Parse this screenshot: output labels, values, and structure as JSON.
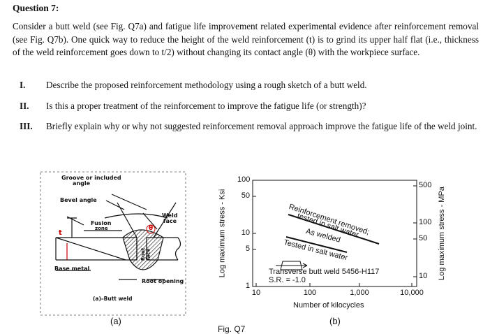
{
  "question": {
    "title": "Question 7:",
    "paragraph": "Consider a butt weld (see Fig. Q7a) and fatigue life improvement related experimental evidence after reinforcement removal (see Fig. Q7b). One quick way to reduce the height of the weld reinforcement (t) is to grind its upper half flat (i.e., thickness of the weld reinforcement goes down to t/2) without changing its contact angle (θ) with the workpiece surface.",
    "items": [
      {
        "num": "I.",
        "text": "Describe the proposed reinforcement methodology using a rough sketch of a butt weld."
      },
      {
        "num": "II.",
        "text": "Is this a proper treatment of the reinforcement to improve the fatigue life (or strength)?"
      },
      {
        "num": "III.",
        "text": "Briefly explain why or why not suggested reinforcement removal approach improve the fatigue life of the weld joint."
      }
    ]
  },
  "figure": {
    "a": {
      "groove": "Groove or included",
      "groove2": "angle",
      "bevel": "Bevel angle",
      "fusion": "Fusion",
      "fusion2": "zone",
      "weld_face": "Weld",
      "weld_face2": "face",
      "theta": "θ",
      "t": "t",
      "root_face": "Root",
      "root_face2": "face",
      "base_metal": "Base metal",
      "root_opening": "Root opening",
      "caption": "(a)–Butt weld",
      "label": "(a)"
    },
    "b": {
      "y_label": "Log maximum stress - Ksi",
      "y2_label": "Log maximum stress - MPa",
      "x_label": "Number of kilocycles",
      "yticks": [
        "100",
        "50",
        "10",
        "5",
        "1"
      ],
      "y2ticks": [
        "500",
        "100",
        "50",
        "10"
      ],
      "xticks": [
        "10",
        "100",
        "1,000",
        "10,000"
      ],
      "note1": "Reinforcement removed;",
      "note2": "tested in salt water",
      "note3": "As welded",
      "note4": "Tested in salt water",
      "note5": "Transverse butt weld 5456-H117",
      "note6": "S.R. = -1.0",
      "label": "(b)"
    },
    "caption": "Fig. Q7"
  }
}
